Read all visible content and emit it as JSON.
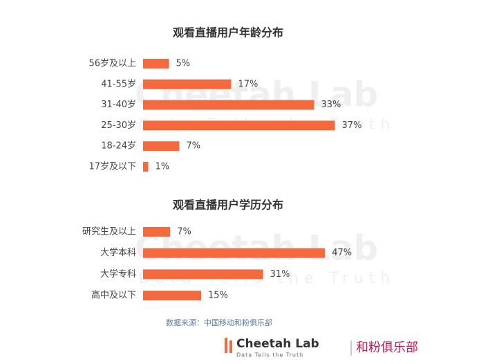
{
  "chart_data": [
    {
      "type": "bar",
      "orientation": "horizontal",
      "title": "观看直播用户年龄分布",
      "color": "#f26a3d",
      "categories": [
        "56岁及以上",
        "41-55岁",
        "31-40岁",
        "25-30岁",
        "18-24岁",
        "17岁及以下"
      ],
      "values": [
        5,
        17,
        33,
        37,
        7,
        1
      ],
      "value_labels": [
        "5%",
        "17%",
        "33%",
        "37%",
        "7%",
        "1%"
      ]
    },
    {
      "type": "bar",
      "orientation": "horizontal",
      "title": "观看直播用户学历分布",
      "color": "#f26a3d",
      "categories": [
        "研究生及以上",
        "大学本科",
        "大学专科",
        "高中及以下"
      ],
      "values": [
        7,
        47,
        31,
        15
      ],
      "value_labels": [
        "7%",
        "47%",
        "31%",
        "15%"
      ]
    }
  ],
  "source": "数据来源：中国移动和粉俱乐部",
  "watermark": {
    "name": "Cheetah Lab",
    "slogan": "Data Tells the Truth"
  },
  "logo": {
    "name": "Cheetah Lab",
    "slogan": "Data Tells the Truth",
    "partner": "和粉俱乐部"
  }
}
